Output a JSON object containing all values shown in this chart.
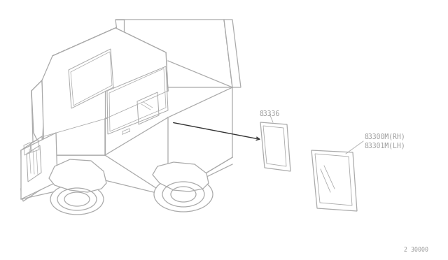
{
  "background_color": "#ffffff",
  "fig_width": 6.4,
  "fig_height": 3.72,
  "dpi": 100,
  "label_83336": "83336",
  "label_83300M": "83300M(RH)",
  "label_83301M": "83301M(LH)",
  "footer_text": "2 30000",
  "text_color": "#999999",
  "line_color": "#aaaaaa",
  "dark_line_color": "#555555",
  "font_size_labels": 7.0,
  "font_size_footer": 6.0
}
